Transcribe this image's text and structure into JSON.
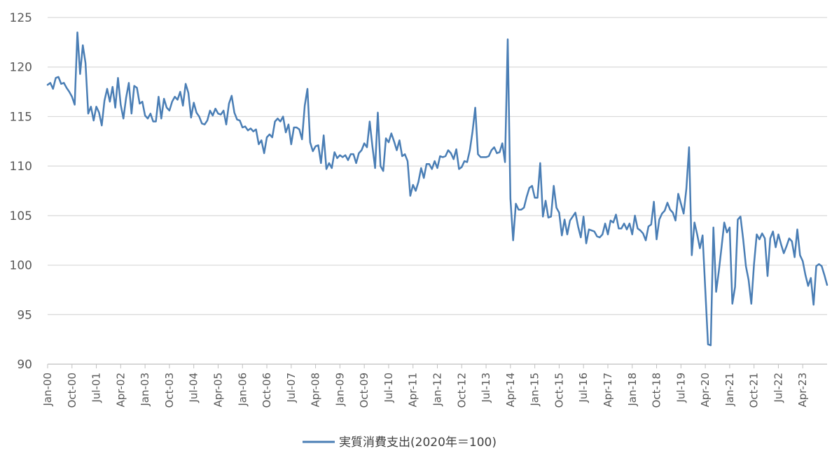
{
  "chart_data": {
    "type": "line",
    "title": "",
    "xlabel": "",
    "ylabel": "",
    "ylim": [
      90,
      125
    ],
    "y_ticks": [
      90,
      95,
      100,
      105,
      110,
      115,
      120,
      125
    ],
    "y_tick_labels": [
      "90",
      "95",
      "100",
      "105",
      "110",
      "115",
      "120",
      "125"
    ],
    "grid": "horizontal",
    "legend_position": "bottom",
    "x_start": "2000-01",
    "x_tick_labels": [
      "Jan-00",
      "Oct-00",
      "Jul-01",
      "Apr-02",
      "Jan-03",
      "Oct-03",
      "Jul-04",
      "Apr-05",
      "Jan-06",
      "Oct-06",
      "Jul-07",
      "Apr-08",
      "Jan-09",
      "Oct-09",
      "Jul-10",
      "Apr-11",
      "Jan-12",
      "Oct-12",
      "Jul-13",
      "Apr-14",
      "Jan-15",
      "Oct-15",
      "Jul-16",
      "Apr-17",
      "Jan-18",
      "Oct-18",
      "Jul-19",
      "Apr-20",
      "Jan-21",
      "Oct-21",
      "Jul-22",
      "Apr-23"
    ],
    "series": [
      {
        "name": "実質消費支出(2020年＝100)",
        "color": "#4a7eb5",
        "values": [
          118.2,
          118.4,
          117.8,
          118.9,
          119.0,
          118.3,
          118.4,
          117.9,
          117.5,
          117.0,
          116.2,
          123.5,
          119.3,
          122.2,
          120.4,
          115.3,
          116.0,
          114.6,
          116.0,
          115.4,
          114.1,
          116.6,
          117.8,
          116.5,
          118.0,
          115.9,
          118.9,
          116.2,
          114.8,
          116.9,
          118.4,
          115.3,
          118.1,
          117.9,
          116.3,
          116.5,
          115.1,
          114.8,
          115.3,
          114.5,
          114.5,
          117.0,
          114.8,
          116.8,
          115.9,
          115.6,
          116.5,
          117.0,
          116.7,
          117.5,
          116.1,
          118.3,
          117.4,
          114.9,
          116.4,
          115.4,
          115.0,
          114.3,
          114.2,
          114.6,
          115.6,
          115.1,
          115.8,
          115.3,
          115.2,
          115.6,
          114.2,
          116.3,
          117.1,
          115.4,
          114.7,
          114.6,
          113.9,
          114.0,
          113.6,
          113.8,
          113.5,
          113.7,
          112.2,
          112.6,
          111.3,
          112.9,
          113.2,
          112.9,
          114.5,
          114.8,
          114.5,
          115.0,
          113.4,
          114.2,
          112.2,
          113.9,
          113.9,
          113.7,
          112.7,
          116.1,
          117.8,
          112.4,
          111.5,
          112.0,
          112.1,
          110.3,
          113.1,
          109.7,
          110.3,
          109.8,
          111.4,
          110.8,
          111.1,
          110.9,
          111.1,
          110.6,
          111.2,
          111.2,
          110.3,
          111.3,
          111.6,
          112.3,
          111.9,
          114.5,
          112.0,
          109.8,
          115.4,
          110.0,
          109.5,
          112.8,
          112.4,
          113.3,
          112.5,
          111.6,
          112.6,
          111.0,
          111.2,
          110.5,
          107.0,
          108.1,
          107.5,
          108.4,
          109.8,
          108.8,
          110.2,
          110.2,
          109.7,
          110.5,
          109.8,
          111.0,
          110.9,
          111.0,
          111.6,
          111.3,
          110.7,
          111.7,
          109.7,
          109.9,
          110.5,
          110.4,
          111.6,
          113.5,
          115.9,
          111.2,
          110.9,
          110.9,
          110.9,
          111.0,
          111.6,
          111.9,
          111.3,
          111.4,
          112.3,
          110.4,
          122.8,
          106.7,
          102.5,
          106.2,
          105.6,
          105.6,
          105.8,
          106.9,
          107.8,
          108.0,
          106.8,
          106.8,
          110.3,
          104.9,
          106.5,
          104.8,
          104.9,
          108.0,
          105.8,
          105.3,
          103.0,
          104.6,
          103.1,
          104.5,
          104.9,
          105.3,
          103.9,
          102.8,
          104.9,
          102.2,
          103.6,
          103.5,
          103.4,
          102.9,
          102.8,
          103.1,
          104.2,
          103.1,
          104.5,
          104.3,
          105.1,
          103.7,
          103.7,
          104.2,
          103.6,
          104.2,
          103.1,
          105.0,
          103.7,
          103.5,
          103.2,
          102.5,
          103.9,
          104.1,
          106.4,
          102.6,
          104.6,
          105.2,
          105.5,
          106.3,
          105.6,
          105.3,
          104.5,
          107.2,
          106.2,
          105.2,
          107.7,
          111.9,
          101.0,
          104.3,
          103.1,
          101.7,
          103.0,
          97.5,
          92.0,
          91.9,
          103.8,
          97.3,
          99.4,
          101.8,
          104.3,
          103.3,
          103.8,
          96.1,
          97.8,
          104.6,
          104.9,
          102.6,
          99.9,
          98.5,
          96.1,
          100.1,
          103.1,
          102.6,
          103.2,
          102.7,
          98.9,
          102.7,
          103.4,
          101.8,
          103.1,
          102.1,
          101.2,
          101.9,
          102.7,
          102.4,
          100.8,
          103.6,
          101.0,
          100.4,
          99.0,
          97.9,
          98.7,
          96.0,
          99.9,
          100.1,
          99.9,
          99.0,
          98.0
        ]
      }
    ]
  },
  "legend": {
    "label": "実質消費支出(2020年＝100)"
  }
}
